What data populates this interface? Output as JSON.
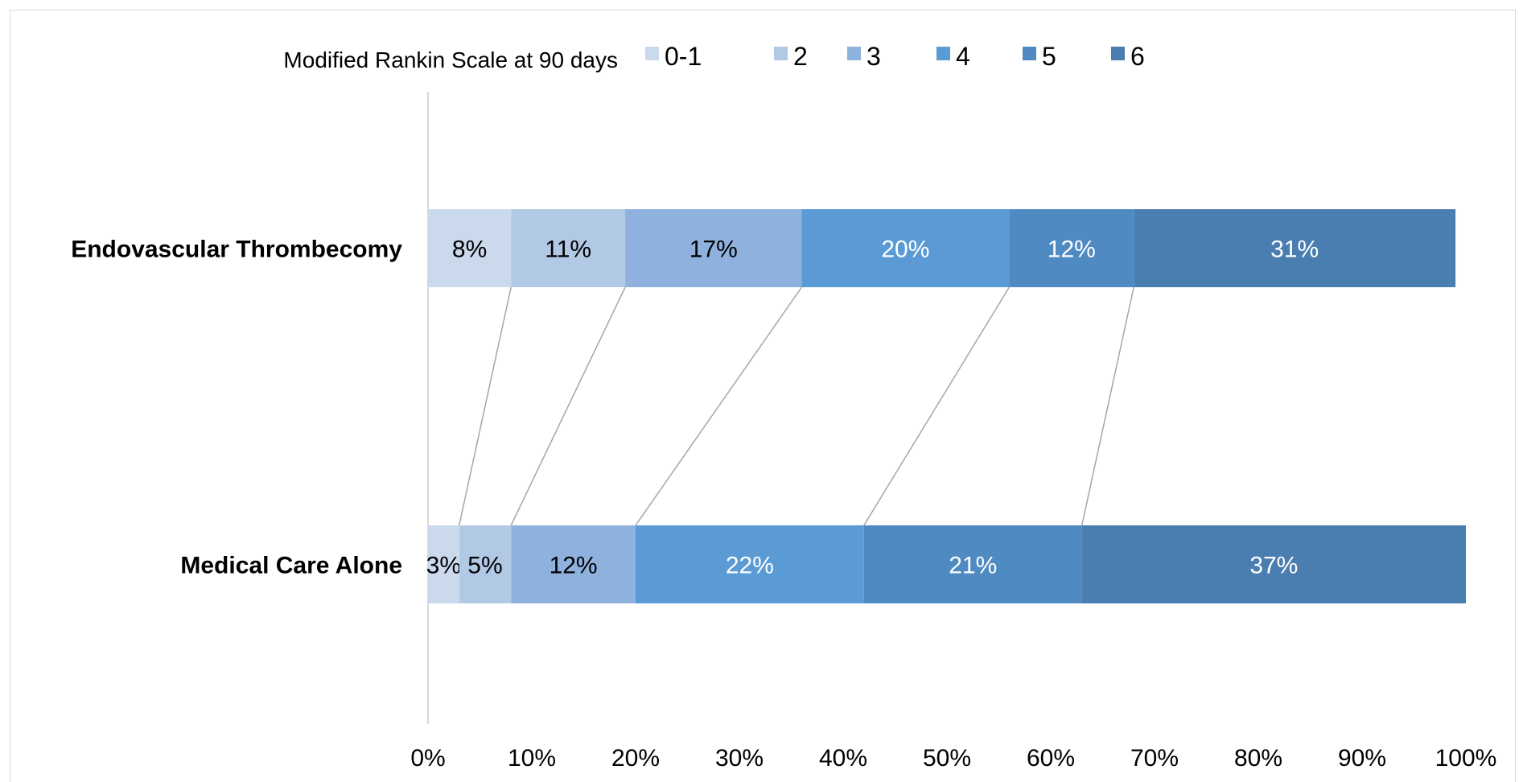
{
  "chart_data": {
    "type": "bar",
    "orientation": "horizontal",
    "stacked": "percent",
    "legend": {
      "title": "Modified Rankin Scale at 90 days",
      "placement": "top"
    },
    "categories": [
      "Endovascular Thrombecomy",
      "Medical Care Alone"
    ],
    "series": [
      {
        "name": "0-1",
        "values": [
          8,
          3
        ],
        "labels": [
          "8%",
          "3%"
        ],
        "color": "#cbd9ec",
        "label_color": "#000000"
      },
      {
        "name": "2",
        "values": [
          11,
          5
        ],
        "labels": [
          "11%",
          "5%"
        ],
        "color": "#b2c9e6",
        "label_color": "#000000"
      },
      {
        "name": "3",
        "values": [
          17,
          12
        ],
        "labels": [
          "17%",
          "12%"
        ],
        "color": "#8fb1de",
        "label_color": "#000000"
      },
      {
        "name": "4",
        "values": [
          20,
          22
        ],
        "labels": [
          "20%",
          "22%"
        ],
        "color": "#5b9bd5",
        "label_color": "#ffffff"
      },
      {
        "name": "5",
        "values": [
          12,
          21
        ],
        "labels": [
          "12%",
          "21%"
        ],
        "color": "#508ac3",
        "label_color": "#ffffff"
      },
      {
        "name": "6",
        "values": [
          31,
          37
        ],
        "labels": [
          "31%",
          "37%"
        ],
        "color": "#4a7eb0",
        "label_color": "#ffffff"
      }
    ],
    "xlim": [
      0,
      100
    ],
    "xticks": [
      0,
      10,
      20,
      30,
      40,
      50,
      60,
      70,
      80,
      90,
      100
    ],
    "xtick_labels": [
      "0%",
      "10%",
      "20%",
      "30%",
      "40%",
      "50%",
      "60%",
      "70%",
      "80%",
      "90%",
      "100%"
    ],
    "series_lines": true,
    "grid": false
  }
}
